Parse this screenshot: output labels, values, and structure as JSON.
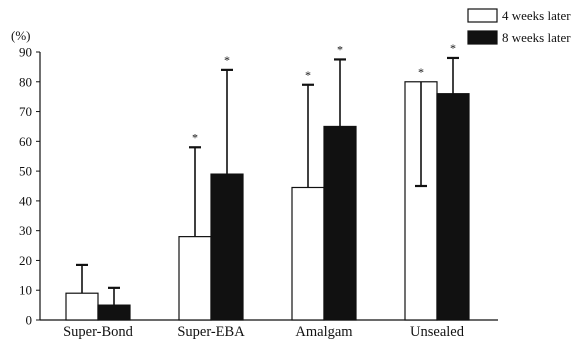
{
  "chart_data": {
    "type": "bar",
    "ylabel": "(%)",
    "ylim": [
      0,
      90
    ],
    "yticks": [
      0,
      10,
      20,
      30,
      40,
      50,
      60,
      70,
      80,
      90
    ],
    "grid": false,
    "legend_position": "top-right",
    "categories": [
      "Super-Bond",
      "Super-EBA",
      "Amalgam",
      "Unsealed"
    ],
    "series": [
      {
        "name": "4 weeks later",
        "fill": "#ffffff",
        "values": [
          9,
          28,
          44.5,
          80
        ],
        "error": [
          9.5,
          30,
          34.5,
          35
        ],
        "error_direction": [
          "up",
          "up",
          "up",
          "down"
        ],
        "significance": [
          "",
          "*",
          "*",
          "*"
        ]
      },
      {
        "name": "8 weeks later",
        "fill": "#111111",
        "values": [
          5,
          49,
          65,
          76
        ],
        "error": [
          5.8,
          35,
          22.5,
          12
        ],
        "error_direction": [
          "up",
          "up",
          "up",
          "up"
        ],
        "significance": [
          "",
          "*",
          "*",
          "*"
        ]
      }
    ]
  }
}
